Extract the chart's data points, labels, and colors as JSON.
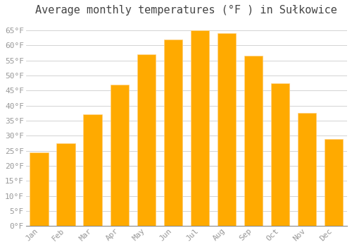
{
  "title": "Average monthly temperatures (°F ) in Sułkowice",
  "months": [
    "Jan",
    "Feb",
    "Mar",
    "Apr",
    "May",
    "Jun",
    "Jul",
    "Aug",
    "Sep",
    "Oct",
    "Nov",
    "Dec"
  ],
  "values": [
    24.5,
    27.5,
    37.0,
    47.0,
    57.0,
    62.0,
    65.0,
    64.0,
    56.5,
    47.5,
    37.5,
    29.0
  ],
  "bar_color": "#FFAA00",
  "ylim": [
    0,
    68
  ],
  "yticks": [
    0,
    5,
    10,
    15,
    20,
    25,
    30,
    35,
    40,
    45,
    50,
    55,
    60,
    65
  ],
  "background_color": "#ffffff",
  "grid_color": "#cccccc",
  "title_fontsize": 11,
  "tick_fontsize": 8,
  "label_color": "#999999"
}
